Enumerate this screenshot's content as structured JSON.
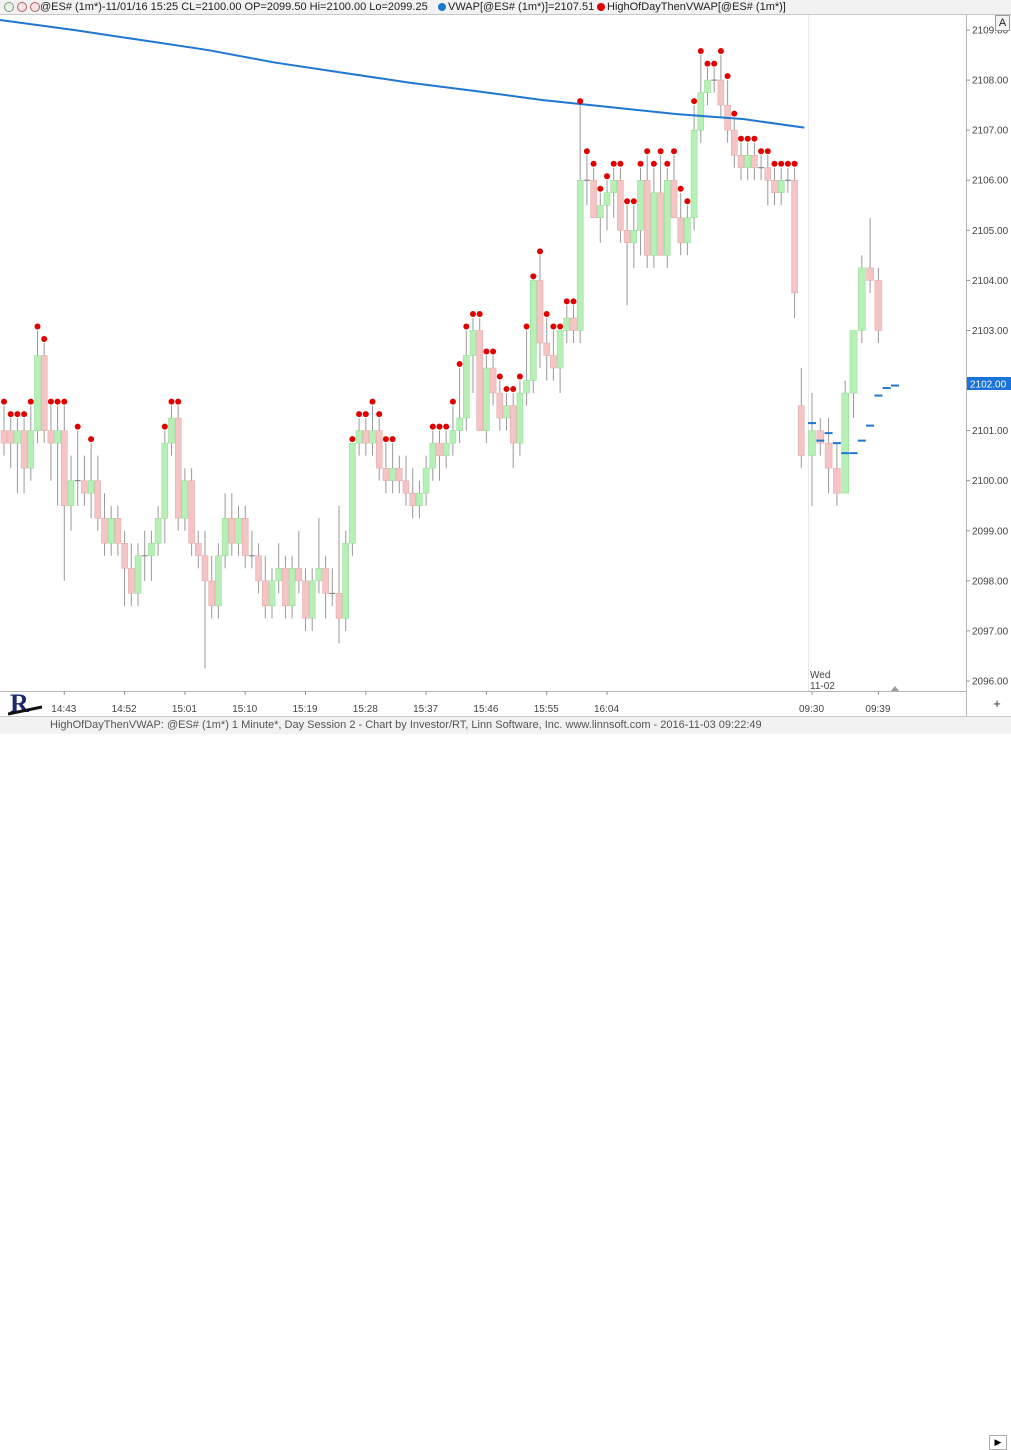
{
  "header": {
    "symbol_info": "@ES# (1m*)-11/01/16 15:25 CL=2100.00 OP=2099.50 Hi=2100.00 Lo=2099.25",
    "vwap_label": "VWAP[@ES# (1m*)]=2107.51",
    "hod_label": "HighOfDayThenVWAP[@ES# (1m*)]"
  },
  "controls": {
    "a_button": "A",
    "plus_button": "+",
    "scroll_arrow": "▶"
  },
  "footer": {
    "text": "HighOfDayThenVWAP: @ES# (1m*) 1 Minute*, Day Session 2 - Chart by Investor/RT, Linn Software, Inc. www.linnsoft.com - 2016-11-03 09:22:49"
  },
  "colors": {
    "up": "#b7f0b7",
    "down": "#f5c4c4",
    "wick": "#999999",
    "vwap": "#1f77d0",
    "marker": "#e00000",
    "current_price_bg": "#1a73d9"
  },
  "chart_data": {
    "type": "candlestick",
    "title": "",
    "xlabel": "",
    "ylabel": "",
    "ylim": [
      2095.8,
      2109.3
    ],
    "y_ticks": [
      "2096.00",
      "2097.00",
      "2098.00",
      "2099.00",
      "2100.00",
      "2101.00",
      "2102.00",
      "2103.00",
      "2104.00",
      "2105.00",
      "2106.00",
      "2107.00",
      "2108.00",
      "2109.00"
    ],
    "x_ticks": [
      "14:43",
      "14:52",
      "15:01",
      "15:10",
      "15:19",
      "15:28",
      "15:37",
      "15:46",
      "15:55",
      "16:04",
      "09:30",
      "09:39"
    ],
    "session_label": [
      "Wed",
      "11-02"
    ],
    "current_price": "2102.00",
    "grid": false,
    "bars": [
      [
        2101.0,
        2101.5,
        2100.5,
        2100.75
      ],
      [
        2101.0,
        2101.25,
        2100.25,
        2100.75
      ],
      [
        2100.75,
        2101.25,
        2099.75,
        2101.0
      ],
      [
        2101.0,
        2101.25,
        2099.75,
        2100.25
      ],
      [
        2100.25,
        2101.5,
        2100.0,
        2101.0
      ],
      [
        2101.0,
        2103.0,
        2100.75,
        2102.5
      ],
      [
        2102.5,
        2102.75,
        2100.75,
        2101.0
      ],
      [
        2101.0,
        2101.5,
        2100.0,
        2100.75
      ],
      [
        2100.75,
        2101.5,
        2099.5,
        2101.0
      ],
      [
        2101.0,
        2101.5,
        2098.0,
        2099.5
      ],
      [
        2099.5,
        2100.5,
        2099.0,
        2100.0
      ],
      [
        2100.0,
        2101.0,
        2099.5,
        2100.0
      ],
      [
        2100.0,
        2100.5,
        2099.5,
        2099.75
      ],
      [
        2099.75,
        2100.75,
        2099.25,
        2100.0
      ],
      [
        2100.0,
        2100.5,
        2099.0,
        2099.25
      ],
      [
        2099.25,
        2099.75,
        2098.5,
        2098.75
      ],
      [
        2098.75,
        2099.5,
        2098.5,
        2099.25
      ],
      [
        2099.25,
        2099.5,
        2098.5,
        2098.75
      ],
      [
        2098.75,
        2099.0,
        2097.5,
        2098.25
      ],
      [
        2098.25,
        2098.75,
        2097.5,
        2097.75
      ],
      [
        2097.75,
        2098.75,
        2097.5,
        2098.5
      ],
      [
        2098.5,
        2099.0,
        2098.0,
        2098.5
      ],
      [
        2098.5,
        2099.0,
        2098.0,
        2098.75
      ],
      [
        2098.75,
        2099.5,
        2098.5,
        2099.25
      ],
      [
        2099.25,
        2101.0,
        2098.75,
        2100.75
      ],
      [
        2100.75,
        2101.5,
        2100.5,
        2101.25
      ],
      [
        2101.25,
        2101.5,
        2099.0,
        2099.25
      ],
      [
        2099.25,
        2100.25,
        2099.0,
        2100.0
      ],
      [
        2100.0,
        2100.25,
        2098.5,
        2098.75
      ],
      [
        2098.75,
        2099.0,
        2098.25,
        2098.5
      ],
      [
        2098.5,
        2099.0,
        2096.25,
        2098.0
      ],
      [
        2098.0,
        2098.5,
        2097.25,
        2097.5
      ],
      [
        2097.5,
        2098.75,
        2097.25,
        2098.5
      ],
      [
        2098.5,
        2099.75,
        2098.25,
        2099.25
      ],
      [
        2099.25,
        2099.75,
        2098.5,
        2098.75
      ],
      [
        2098.75,
        2099.5,
        2098.5,
        2099.25
      ],
      [
        2099.25,
        2099.5,
        2098.25,
        2098.5
      ],
      [
        2098.5,
        2099.0,
        2098.25,
        2098.5
      ],
      [
        2098.5,
        2098.75,
        2097.75,
        2098.0
      ],
      [
        2098.0,
        2098.5,
        2097.25,
        2097.5
      ],
      [
        2097.5,
        2098.25,
        2097.25,
        2098.0
      ],
      [
        2098.0,
        2098.75,
        2097.75,
        2098.25
      ],
      [
        2098.25,
        2098.5,
        2097.25,
        2097.5
      ],
      [
        2097.5,
        2098.5,
        2097.25,
        2098.25
      ],
      [
        2098.25,
        2099.0,
        2097.75,
        2098.0
      ],
      [
        2098.0,
        2098.25,
        2097.0,
        2097.25
      ],
      [
        2097.25,
        2098.25,
        2097.0,
        2098.0
      ],
      [
        2098.0,
        2099.25,
        2097.75,
        2098.25
      ],
      [
        2098.25,
        2098.5,
        2097.25,
        2097.75
      ],
      [
        2097.75,
        2098.25,
        2097.5,
        2097.75
      ],
      [
        2097.75,
        2099.5,
        2096.75,
        2097.25
      ],
      [
        2097.25,
        2099.0,
        2097.0,
        2098.75
      ],
      [
        2098.75,
        2100.75,
        2098.5,
        2100.75
      ],
      [
        2100.75,
        2101.25,
        2100.5,
        2101.0
      ],
      [
        2101.0,
        2101.25,
        2100.5,
        2100.75
      ],
      [
        2100.75,
        2101.5,
        2100.5,
        2101.0
      ],
      [
        2101.0,
        2101.25,
        2100.0,
        2100.25
      ],
      [
        2100.25,
        2100.75,
        2099.75,
        2100.0
      ],
      [
        2100.0,
        2100.75,
        2099.75,
        2100.25
      ],
      [
        2100.25,
        2100.5,
        2099.75,
        2100.0
      ],
      [
        2100.0,
        2100.5,
        2099.5,
        2099.75
      ],
      [
        2099.75,
        2100.25,
        2099.25,
        2099.5
      ],
      [
        2099.5,
        2100.0,
        2099.25,
        2099.75
      ],
      [
        2099.75,
        2100.5,
        2099.5,
        2100.25
      ],
      [
        2100.25,
        2101.0,
        2100.0,
        2100.75
      ],
      [
        2100.75,
        2101.0,
        2100.0,
        2100.5
      ],
      [
        2100.5,
        2101.0,
        2100.25,
        2100.75
      ],
      [
        2100.75,
        2101.5,
        2100.5,
        2101.0
      ],
      [
        2101.0,
        2102.25,
        2100.75,
        2101.25
      ],
      [
        2101.25,
        2103.0,
        2101.0,
        2102.5
      ],
      [
        2102.5,
        2103.25,
        2101.75,
        2103.0
      ],
      [
        2103.0,
        2103.25,
        2101.0,
        2101.0
      ],
      [
        2101.0,
        2102.5,
        2100.75,
        2102.25
      ],
      [
        2102.25,
        2102.5,
        2101.5,
        2101.75
      ],
      [
        2101.75,
        2102.0,
        2101.0,
        2101.25
      ],
      [
        2101.25,
        2101.75,
        2101.0,
        2101.5
      ],
      [
        2101.5,
        2101.75,
        2100.25,
        2100.75
      ],
      [
        2100.75,
        2102.0,
        2100.5,
        2101.75
      ],
      [
        2101.75,
        2103.0,
        2101.5,
        2102.0
      ],
      [
        2102.0,
        2104.0,
        2101.75,
        2104.0
      ],
      [
        2104.0,
        2104.5,
        2102.25,
        2102.75
      ],
      [
        2102.75,
        2103.25,
        2102.0,
        2102.5
      ],
      [
        2102.5,
        2103.0,
        2102.0,
        2102.25
      ],
      [
        2102.25,
        2103.0,
        2101.75,
        2103.0
      ],
      [
        2103.0,
        2103.5,
        2102.75,
        2103.25
      ],
      [
        2103.25,
        2103.5,
        2102.75,
        2103.0
      ],
      [
        2103.0,
        2107.5,
        2102.75,
        2106.0
      ],
      [
        2106.0,
        2106.5,
        2105.5,
        2106.0
      ],
      [
        2106.0,
        2106.25,
        2105.25,
        2105.25
      ],
      [
        2105.25,
        2105.75,
        2104.75,
        2105.5
      ],
      [
        2105.5,
        2106.0,
        2105.0,
        2105.75
      ],
      [
        2105.75,
        2106.25,
        2105.25,
        2106.0
      ],
      [
        2106.0,
        2106.25,
        2104.75,
        2105.0
      ],
      [
        2105.0,
        2105.5,
        2103.5,
        2104.75
      ],
      [
        2104.75,
        2105.5,
        2104.25,
        2105.0
      ],
      [
        2105.0,
        2106.25,
        2104.5,
        2106.0
      ],
      [
        2106.0,
        2106.5,
        2104.25,
        2104.5
      ],
      [
        2104.5,
        2106.25,
        2104.25,
        2105.75
      ],
      [
        2105.75,
        2106.5,
        2104.5,
        2104.5
      ],
      [
        2104.5,
        2106.25,
        2104.25,
        2106.0
      ],
      [
        2106.0,
        2106.5,
        2105.25,
        2105.25
      ],
      [
        2105.25,
        2105.75,
        2104.5,
        2104.75
      ],
      [
        2104.75,
        2105.5,
        2104.5,
        2105.25
      ],
      [
        2105.25,
        2107.5,
        2105.0,
        2107.0
      ],
      [
        2107.0,
        2108.5,
        2106.75,
        2107.75
      ],
      [
        2107.75,
        2108.25,
        2107.5,
        2108.0
      ],
      [
        2108.0,
        2108.25,
        2107.75,
        2108.0
      ],
      [
        2108.0,
        2108.5,
        2107.25,
        2107.5
      ],
      [
        2107.5,
        2108.0,
        2106.75,
        2107.0
      ],
      [
        2107.0,
        2107.25,
        2106.25,
        2106.5
      ],
      [
        2106.5,
        2106.75,
        2106.0,
        2106.25
      ],
      [
        2106.25,
        2106.75,
        2106.0,
        2106.5
      ],
      [
        2106.5,
        2106.75,
        2106.0,
        2106.25
      ],
      [
        2106.25,
        2106.5,
        2106.0,
        2106.25
      ],
      [
        2106.25,
        2106.5,
        2105.5,
        2106.0
      ],
      [
        2106.0,
        2106.25,
        2105.5,
        2105.75
      ],
      [
        2105.75,
        2106.25,
        2105.5,
        2106.0
      ],
      [
        2106.0,
        2106.25,
        2105.75,
        2106.0
      ],
      [
        2106.0,
        2106.25,
        2103.25,
        2103.75
      ],
      [
        2101.5,
        2102.25,
        2100.25,
        2100.5
      ],
      [
        2100.5,
        2101.75,
        2099.5,
        2101.0
      ],
      [
        2101.0,
        2101.25,
        2100.5,
        2100.75
      ],
      [
        2100.75,
        2101.25,
        2099.75,
        2100.25
      ],
      [
        2100.25,
        2100.75,
        2099.5,
        2099.75
      ],
      [
        2099.75,
        2102.0,
        2099.75,
        2101.75
      ],
      [
        2101.75,
        2103.0,
        2101.25,
        2103.0
      ],
      [
        2103.0,
        2104.5,
        2102.75,
        2104.25
      ],
      [
        2104.25,
        2105.25,
        2103.75,
        2104.0
      ],
      [
        2104.0,
        2104.25,
        2102.75,
        2103.0
      ]
    ],
    "first_session_bar_count": 120,
    "vwap": [
      [
        0,
        2109.2
      ],
      [
        10,
        2109.0
      ],
      [
        20,
        2108.8
      ],
      [
        30,
        2108.6
      ],
      [
        40,
        2108.35
      ],
      [
        50,
        2108.15
      ],
      [
        60,
        2107.95
      ],
      [
        70,
        2107.78
      ],
      [
        80,
        2107.6
      ],
      [
        90,
        2107.46
      ],
      [
        100,
        2107.32
      ],
      [
        110,
        2107.22
      ],
      [
        119,
        2107.05
      ]
    ],
    "vwap2": [
      [
        120,
        2101.15
      ],
      [
        121,
        2100.8
      ],
      [
        122,
        2100.95
      ],
      [
        123,
        2100.75
      ],
      [
        124,
        2100.55
      ],
      [
        125,
        2100.55
      ],
      [
        126,
        2100.8
      ],
      [
        127,
        2101.1
      ],
      [
        128,
        2101.7
      ],
      [
        129,
        2101.85
      ],
      [
        130,
        2101.9
      ]
    ]
  }
}
